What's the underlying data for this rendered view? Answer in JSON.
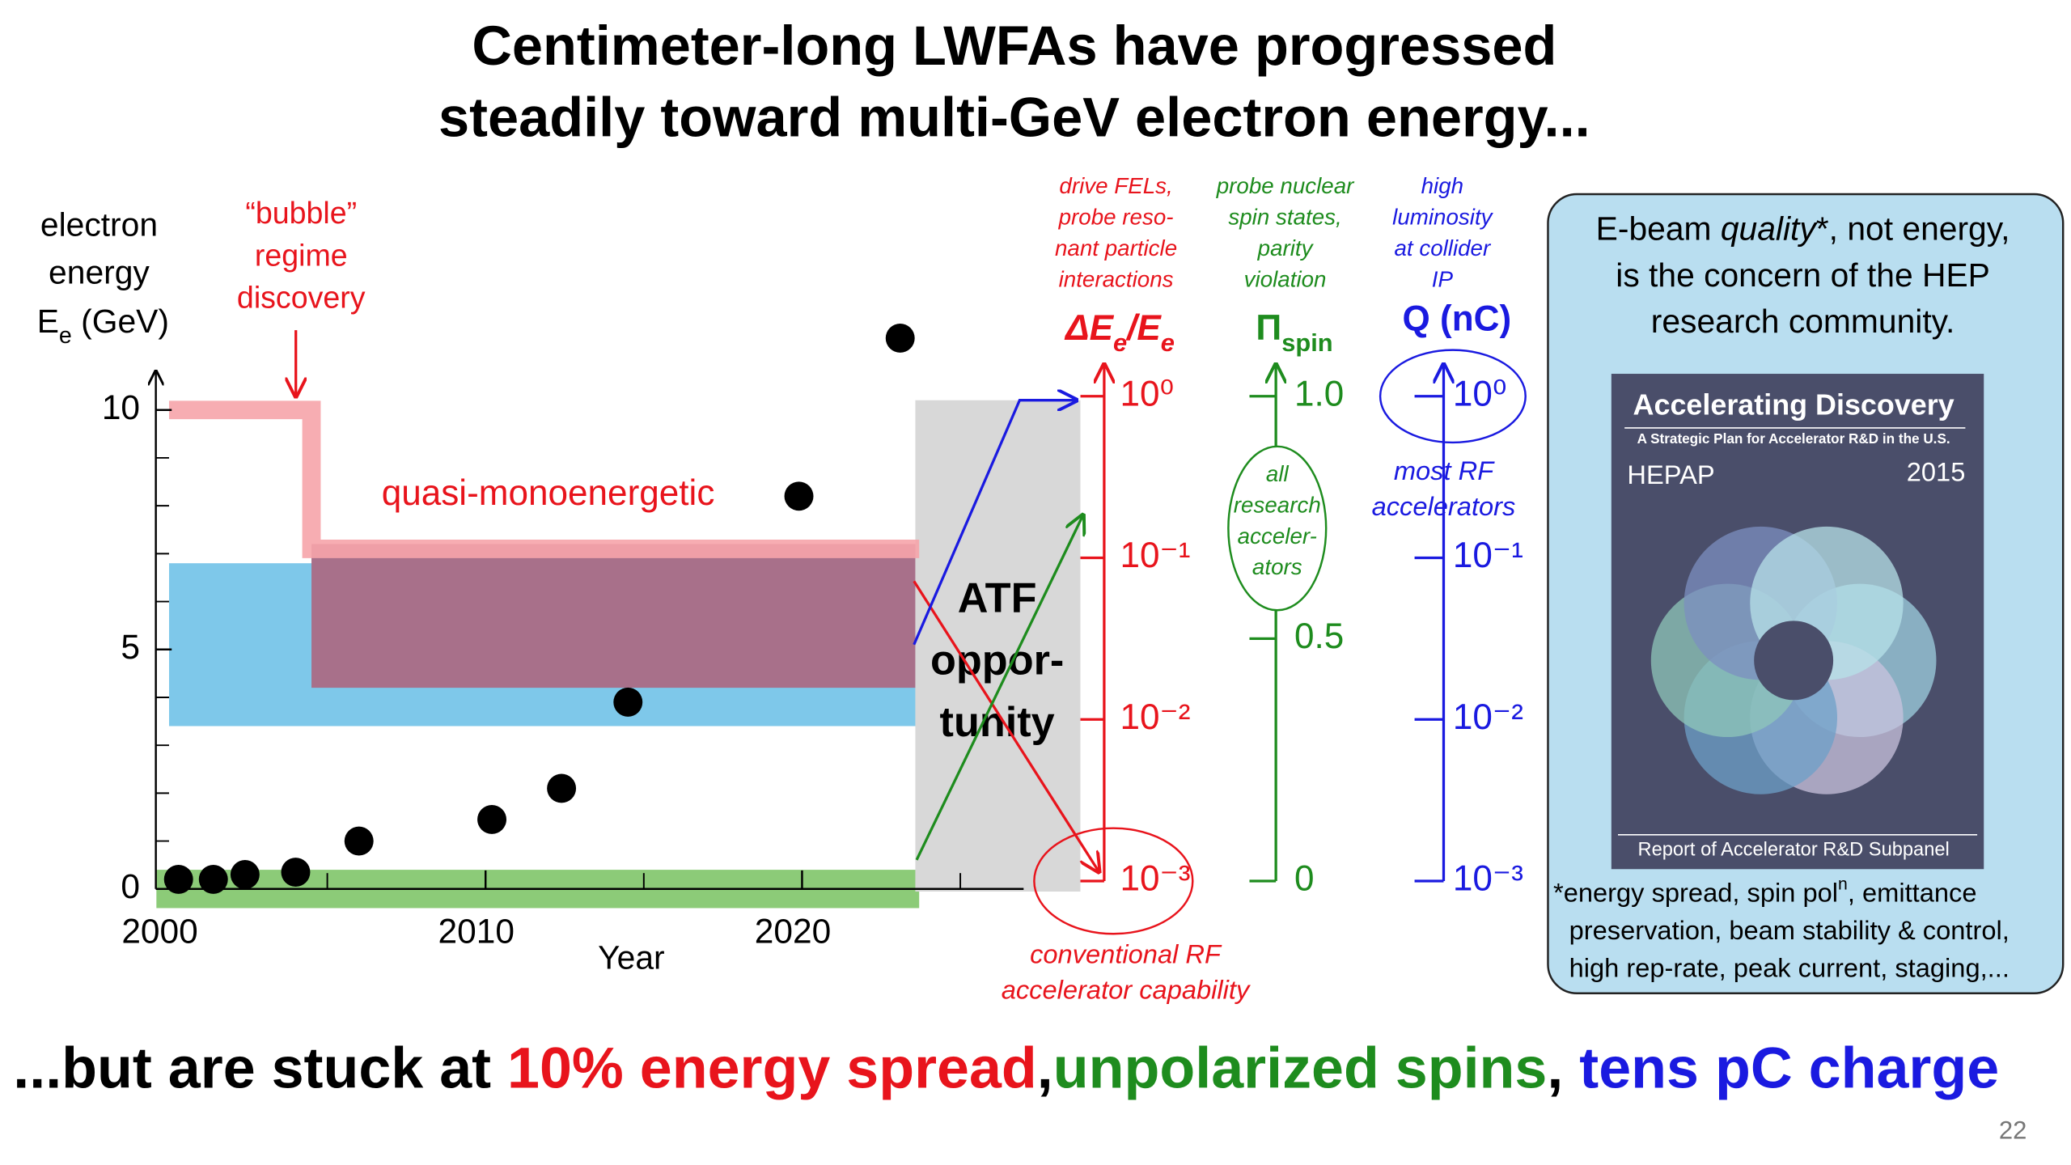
{
  "title": [
    "Centimeter-long LWFAs have progressed",
    "steadily toward multi-GeV electron energy..."
  ],
  "chart_data": {
    "type": "scatter",
    "y_label": [
      "electron",
      "energy"
    ],
    "y_symbol": [
      {
        "t": "E"
      },
      {
        "t": "e",
        "sub": true
      },
      {
        "t": " (GeV)"
      }
    ],
    "x_label": "Year",
    "x": [
      2000.3,
      2001.4,
      2002.4,
      2004.0,
      2006.0,
      2010.2,
      2012.4,
      2014.5,
      2019.9,
      2023.1
    ],
    "values": [
      0.2,
      0.2,
      0.3,
      0.35,
      1.0,
      1.45,
      2.1,
      3.9,
      8.2,
      11.5
    ],
    "color": "#000000",
    "xlim": [
      2000,
      2027
    ],
    "xticks": [
      2000,
      2010,
      2020
    ],
    "xminorticks": [
      2005,
      2015,
      2025
    ],
    "ylim": [
      0,
      10.7
    ],
    "yticks": [
      0,
      5,
      10
    ],
    "yminorticks": [
      1,
      2,
      3,
      4,
      6,
      7,
      8,
      9
    ],
    "bands": [
      {
        "x": [
          2000,
          2023.7
        ],
        "y": [
          3.4,
          6.8
        ],
        "color": "#7ec8ea"
      },
      {
        "x": [
          2004.5,
          2023.7
        ],
        "y": [
          4.2,
          7.2
        ],
        "color": "#a8708a"
      },
      {
        "x": [
          1999.6,
          2023.7
        ],
        "y": [
          -0.4,
          0.4
        ],
        "color": "#8ccb78"
      }
    ],
    "step": {
      "x": [
        2000,
        2004.5,
        2004.5,
        2023.7
      ],
      "y": [
        10,
        10,
        7.1,
        7.1
      ],
      "color": "#f6a4aa"
    },
    "bubble_label": [
      "“bubble”",
      "regime",
      "discovery"
    ],
    "band_label": "quasi-monoenergetic",
    "atf_label": [
      "ATF",
      "oppor-",
      "tunity"
    ]
  },
  "scales": [
    {
      "name": [
        {
          "t": "ΔE"
        },
        {
          "t": "e",
          "sub": true
        },
        {
          "t": "/E"
        },
        {
          "t": "e",
          "sub": true
        }
      ],
      "description": [
        "drive FELs,",
        "probe reso-",
        "nant particle",
        "interactions"
      ],
      "color": "#e8141c",
      "log": true,
      "lim": [
        0.001,
        1
      ],
      "ticks": [
        {
          "value": 1,
          "label": "10⁰"
        },
        {
          "value": 0.1,
          "label": "10⁻¹"
        },
        {
          "value": 0.01,
          "label": "10⁻²"
        },
        {
          "value": 0.001,
          "label": "10⁻³"
        }
      ]
    },
    {
      "name": [
        {
          "t": "Π"
        },
        {
          "t": "spin",
          "sub": true
        }
      ],
      "description": [
        "probe nuclear",
        "spin states,",
        "parity",
        "violation"
      ],
      "color": "#1e8c1e",
      "log": false,
      "lim": [
        0,
        1
      ],
      "ticks": [
        {
          "value": 1,
          "label": "1.0"
        },
        0.5,
        0
      ],
      "note": [
        "all",
        "research",
        "acceler-",
        "ators"
      ]
    },
    {
      "name": [
        {
          "t": "Q (nC)"
        }
      ],
      "description": [
        "high",
        "luminosity",
        "at collider",
        "IP"
      ],
      "color": "#1a1ae0",
      "log": true,
      "lim": [
        0.001,
        1
      ],
      "ticks": [
        {
          "value": 1,
          "label": "10⁰"
        },
        {
          "value": 0.1,
          "label": "10⁻¹"
        },
        {
          "value": 0.01,
          "label": "10⁻²"
        },
        {
          "value": 0.001,
          "label": "10⁻³"
        }
      ],
      "note": [
        "most RF",
        "accelerators"
      ]
    }
  ],
  "rf_note": [
    "conventional RF",
    "accelerator capability"
  ],
  "box": {
    "text": [
      [
        {
          "t": "E-beam "
        },
        {
          "t": "quality",
          "italic": true
        },
        {
          "t": "*, not energy,"
        }
      ],
      [
        {
          "t": "is the concern of the HEP"
        }
      ],
      [
        {
          "t": "research community."
        }
      ]
    ],
    "cover": {
      "title": "Accelerating Discovery",
      "subtitle": "A Strategic Plan for Accelerator R&D in the U.S.",
      "org": "HEPAP",
      "year": "2015",
      "footer": "Report of Accelerator R&D Subpanel"
    },
    "footnote": [
      [
        {
          "t": "*energy spread, spin pol"
        },
        {
          "t": "n",
          "sup": true
        },
        {
          "t": ", emittance"
        }
      ],
      [
        {
          "t": "preservation, beam stability & control,"
        }
      ],
      [
        {
          "t": "high rep-rate, peak current, staging,..."
        }
      ]
    ]
  },
  "bottom": [
    {
      "t": "...but are stuck at ",
      "color": "#000000"
    },
    {
      "t": "10% energy spread",
      "color": "#e8141c"
    },
    {
      "t": ",",
      "color": "#000000"
    },
    {
      "t": "unpolarized spins",
      "color": "#1e8c1e"
    },
    {
      "t": ", ",
      "color": "#000000"
    },
    {
      "t": "tens pC charge",
      "color": "#1a1ae0"
    }
  ],
  "page": "22"
}
